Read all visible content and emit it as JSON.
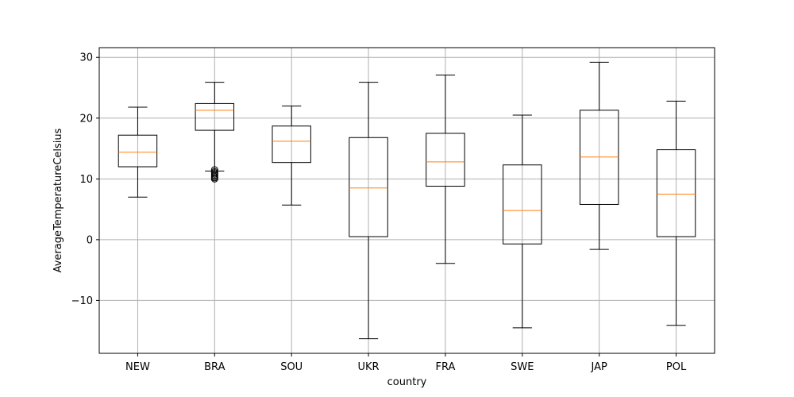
{
  "chart_data": {
    "type": "box",
    "xlabel": "country",
    "ylabel": "AverageTemperatureCelsius",
    "ylim": [
      -18.7,
      31.6
    ],
    "yticks": [
      -10,
      0,
      10,
      20,
      30
    ],
    "ytick_labels": [
      "−10",
      "0",
      "10",
      "20",
      "30"
    ],
    "grid": true,
    "categories": [
      "NEW",
      "BRA",
      "SOU",
      "UKR",
      "FRA",
      "SWE",
      "JAP",
      "POL"
    ],
    "boxes": [
      {
        "whislo": 7.0,
        "q1": 12.0,
        "med": 14.4,
        "q3": 17.2,
        "whishi": 21.8,
        "fliers": []
      },
      {
        "whislo": 11.3,
        "q1": 18.0,
        "med": 21.3,
        "q3": 22.4,
        "whishi": 25.9,
        "fliers": [
          11.5,
          11.2,
          11.0,
          10.8,
          10.6,
          10.4,
          10.2,
          10.0
        ]
      },
      {
        "whislo": 5.7,
        "q1": 12.7,
        "med": 16.2,
        "q3": 18.7,
        "whishi": 22.0,
        "fliers": []
      },
      {
        "whislo": -16.3,
        "q1": 0.5,
        "med": 8.5,
        "q3": 16.8,
        "whishi": 25.9,
        "fliers": []
      },
      {
        "whislo": -3.9,
        "q1": 8.8,
        "med": 12.8,
        "q3": 17.5,
        "whishi": 27.1,
        "fliers": []
      },
      {
        "whislo": -14.5,
        "q1": -0.7,
        "med": 4.8,
        "q3": 12.3,
        "whishi": 20.5,
        "fliers": []
      },
      {
        "whislo": -1.6,
        "q1": 5.8,
        "med": 13.6,
        "q3": 21.3,
        "whishi": 29.2,
        "fliers": []
      },
      {
        "whislo": -14.1,
        "q1": 0.5,
        "med": 7.5,
        "q3": 14.8,
        "whishi": 22.8,
        "fliers": []
      }
    ],
    "colors": {
      "box": "#000000",
      "median": "#ff7f0e",
      "grid": "#b0b0b0",
      "spine": "#000000"
    }
  }
}
